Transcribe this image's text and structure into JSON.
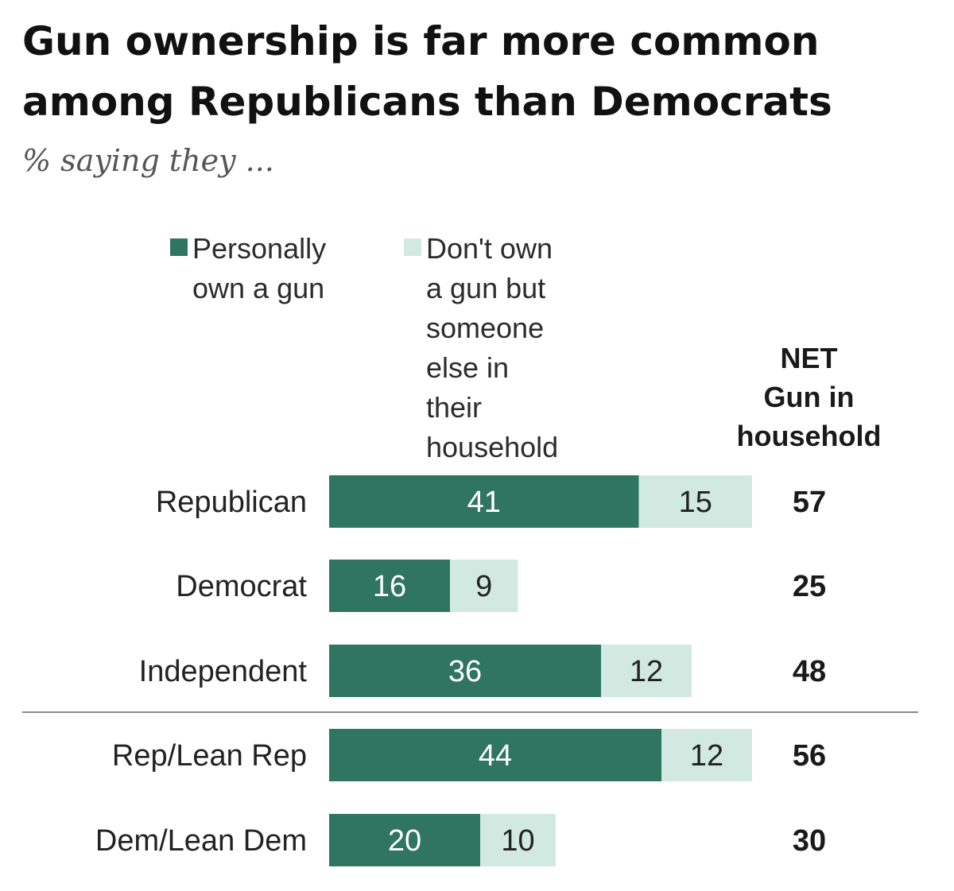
{
  "chart_data": {
    "type": "bar",
    "orientation": "horizontal",
    "stacked": true,
    "title_lines": [
      "Gun ownership is far more common",
      "among Republicans than Democrats"
    ],
    "subtitle": "% saying they ...",
    "categories": [
      "Republican",
      "Democrat",
      "Independent",
      "Rep/Lean Rep",
      "Dem/Lean Dem"
    ],
    "series": [
      {
        "name": "Personally own a gun",
        "color": "#2f7560",
        "label_color": "#ffffff",
        "values": [
          41,
          16,
          36,
          44,
          20
        ]
      },
      {
        "name": "Don't own a gun but someone else in their household does",
        "color": "#d2e9e1",
        "label_color": "#222222",
        "values": [
          15,
          9,
          12,
          12,
          10
        ]
      }
    ],
    "legend": {
      "placement": "top",
      "labels": [
        "Personally\nown a gun",
        "Don't own a gun but\nsomeone else in their\nhousehold does"
      ]
    },
    "net_column": {
      "header": "NET\nGun in\nhousehold",
      "values": [
        57,
        25,
        48,
        56,
        30
      ]
    },
    "separator_after_index": 2,
    "grid": false
  }
}
